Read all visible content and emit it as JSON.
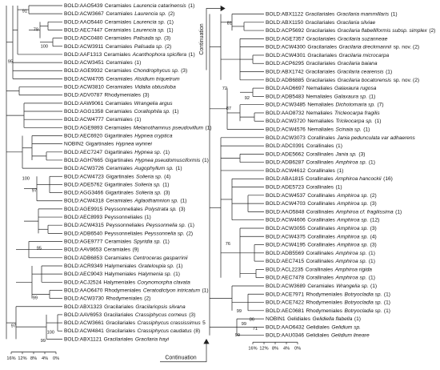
{
  "left_column": {
    "leaves": [
      {
        "id": "BOLD:AAO5439",
        "order": "Ceramiales",
        "taxon": "Laurencia catarinensis",
        "count": "(1)"
      },
      {
        "id": "BOLD:ACW3667",
        "order": "Ceramiales",
        "taxon": "Laurencia sp.",
        "count": "(2)"
      },
      {
        "id": "BOLD:AAO5440",
        "order": "Ceramiales",
        "taxon": "Laurencia sp.",
        "count": "(1)"
      },
      {
        "id": "BOLD:AEC7447",
        "order": "Ceramiales",
        "taxon": "Laurencia sp.",
        "count": "(1)"
      },
      {
        "id": "BOLD:ADC0480",
        "order": "Ceramiales",
        "taxon": "Palisada sp.",
        "count": "(3)"
      },
      {
        "id": "BOLD:ACW3911",
        "order": "Ceramiales",
        "taxon": "Palisada sp.",
        "count": "(2)"
      },
      {
        "id": "BOLD:AAF1313",
        "order": "Ceramiales",
        "taxon": "Acanthophora spicifera",
        "count": "(1)"
      },
      {
        "id": "BOLD:ACW3451",
        "order": "Ceramiales",
        "count": "(1)"
      },
      {
        "id": "BOLD:AGE9932",
        "order": "Ceramiales",
        "taxon": "Chondrophycus sp.",
        "count": "(3)"
      },
      {
        "id": "BOLD:ACW4705",
        "order": "Ceramiales",
        "taxon": "Alsidium triquetrum"
      },
      {
        "id": "BOLD:ACW3810",
        "order": "Ceramiales",
        "taxon": "Vidalia obtusiloba"
      },
      {
        "id": "BOLD:ADV0787",
        "order": "Rhodymeniales",
        "count": "(3)"
      },
      {
        "id": "BOLD:AAW9061",
        "order": "Ceramiales",
        "taxon": "Wrangelia argus"
      },
      {
        "id": "BOLD:AGG1358",
        "order": "Ceramiales",
        "taxon": "Corallophila sp.",
        "count": "(1)"
      },
      {
        "id": "BOLD:ACW4777",
        "order": "Ceramiales",
        "count": "(1)"
      },
      {
        "id": "BOLD:AGE9893",
        "order": "Ceramiales",
        "taxon": "Melanothamnus pseudovillum",
        "count": "(1)"
      },
      {
        "id": "BOLD:AEC6920",
        "order": "Gigartinales",
        "taxon": "Hypnea cryptica"
      },
      {
        "id": "NOBIN2",
        "order": "Gigartinales",
        "taxon": "Hypnea wynnei"
      },
      {
        "id": "BOLD:AEC7247",
        "order": "Gigartinales",
        "taxon": "Hypnea sp.",
        "count": "(1)"
      },
      {
        "id": "BOLD:AGH7665",
        "order": "Gigartinales",
        "taxon": "Hypnea pseudomusciformis",
        "count": "(1)"
      },
      {
        "id": "BOLD:ACW3726",
        "order": "Ceramiales",
        "taxon": "Augophyllum sp.",
        "count": "(1)"
      },
      {
        "id": "BOLD:ACW4723",
        "order": "Gigartinales",
        "taxon": "Solieria sp.",
        "count": "(4)"
      },
      {
        "id": "BOLD:ADE5762",
        "order": "Gigartinales",
        "taxon": "Solieria sp.",
        "count": "(1)"
      },
      {
        "id": "BOLD:AGG3466",
        "order": "Gigartinales",
        "taxon": "Solieria sp.",
        "count": "(3)"
      },
      {
        "id": "BOLD:ACW4318",
        "order": "Ceramiales",
        "taxon": "Aglaothamnion sp.",
        "count": "(1)"
      },
      {
        "id": "BOLD:AGE9915",
        "order": "Peyssonneliales",
        "taxon": "Polystrata sp.",
        "count": "(3)"
      },
      {
        "id": "BOLD:AEC8993",
        "order": "Peyssonneliales",
        "count": "(1)"
      },
      {
        "id": "BOLD:ACW4315",
        "order": "Peyssonneliales",
        "taxon": "Peyssonnelia sp.",
        "count": "(1)"
      },
      {
        "id": "BOLD:ADB6540",
        "order": "Peyssonneliales",
        "taxon": "Peyssonnelia sp.",
        "count": "(2)"
      },
      {
        "id": "BOLD:AGE9777",
        "order": "Ceramiales",
        "taxon": "Spyridia sp.",
        "count": "(1)"
      },
      {
        "id": "BOLD:AAV8653",
        "order": "Ceramiales",
        "count": "(9)"
      },
      {
        "id": "BOLD:ADB6853",
        "order": "Ceramiales",
        "taxon": "Centroceras gasparrinii"
      },
      {
        "id": "BOLD:ACR9349",
        "order": "Halymeniales",
        "taxon": "Grateloupia sp.",
        "count": "(1)"
      },
      {
        "id": "BOLD:AEC9043",
        "order": "Halymeniales",
        "taxon": "Halymenia sp.",
        "count": "(1)"
      },
      {
        "id": "BOLD:ACJ2524",
        "order": "Halymeniales",
        "taxon": "Corynomorpha clavata"
      },
      {
        "id": "BOLD:AAO6470",
        "order": "Rhodymeniales",
        "taxon": "Ceratodictyon intricatum",
        "count": "(1)"
      },
      {
        "id": "BOLD:ACW3730",
        "order": "Rhodymeniales",
        "count": "(2)"
      },
      {
        "id": "BOLD:ABX1323",
        "order": "Gracilariales",
        "taxon": "Gracilariopsis silvana"
      },
      {
        "id": "BOLD:AAV6953",
        "order": "Gracilariales",
        "taxon": "Crassiphycus corneus",
        "count": "(3)"
      },
      {
        "id": "BOLD:ACW3661",
        "order": "Gracilariales",
        "taxon": "Crassiphycus crassissimus",
        "count": "5"
      },
      {
        "id": "BOLD:ACW4841",
        "order": "Gracilariales",
        "taxon": "Crassiphycus caudatus",
        "count": "(8)"
      },
      {
        "id": "BOLD:ABX1121",
        "order": "Gracilariales",
        "taxon": "Gracilaria hayi"
      }
    ],
    "bootstrap": [
      91,
      79,
      100,
      95,
      100,
      97,
      95,
      99,
      97,
      100,
      99
    ]
  },
  "right_column": {
    "leaves": [
      {
        "id": "BOLD:ABX1122",
        "order": "Gracilariales",
        "taxon": "Gracilaria mammillaris",
        "count": "(1)"
      },
      {
        "id": "BOLD:ABX1150",
        "order": "Gracilariales",
        "taxon": "Gracilaria silviae"
      },
      {
        "id": "BOLD:ACP5692",
        "order": "Gracilariales",
        "taxon": "Gracilaria flabelliformis subsp. simplex",
        "count": "(2)"
      },
      {
        "id": "BOLD:AGE7357",
        "order": "Gracilariales",
        "taxon": "Gracilaria suzanneae"
      },
      {
        "id": "BOLD:ACW4300",
        "order": "Gracilariales",
        "taxon": "Gracilaria dreckmannii",
        "count": "sp. nov. (2)"
      },
      {
        "id": "BOLD:ACW4301",
        "order": "Gracilariales",
        "taxon": "Gracilaria microcarpa"
      },
      {
        "id": "BOLD:ACP6295",
        "order": "Gracilariales",
        "taxon": "Gracilaria baiana"
      },
      {
        "id": "BOLD:ABX1742",
        "order": "Gracilariales",
        "taxon": "Gracilaria cearensis",
        "count": "(1)"
      },
      {
        "id": "BOLD:ADB6885",
        "order": "Gracilariales",
        "taxon": "Gracilaria bocatorensis",
        "count": "sp. nov. (2)"
      },
      {
        "id": "BOLD:AAO6697",
        "order": "Nemaliales",
        "taxon": "Galaxaura rugosa"
      },
      {
        "id": "BOLD:ADB5483",
        "order": "Nemaliales",
        "taxon": "Galaxaura sp.",
        "count": "(1)"
      },
      {
        "id": "BOLD:ACW3485",
        "order": "Nemaliales",
        "taxon": "Dichotomaria sp.",
        "count": "(7)"
      },
      {
        "id": "BOLD:AAO8732",
        "order": "Nemaliales",
        "taxon": "Tricleocarpa fragilis"
      },
      {
        "id": "BOLD:ACW3720",
        "order": "Nemaliales",
        "taxon": "Tricleocarpa sp.",
        "count": "(1)"
      },
      {
        "id": "BOLD:ACW4576",
        "order": "Nemaliales",
        "taxon": "Scinaia sp.",
        "count": "(1)"
      },
      {
        "id": "BOLD:ACW3073",
        "order": "Corallinales",
        "taxon": "Jania pedunculata var adhaerens"
      },
      {
        "id": "BOLD:ADC0391",
        "order": "Corallinales",
        "count": "(1)"
      },
      {
        "id": "BOLD:ADE5662",
        "order": "Corallinales",
        "taxon": "Jania sp.",
        "count": "(3)"
      },
      {
        "id": "BOLD:ADB6287",
        "order": "Corallinales",
        "taxon": "Amphiroa sp.",
        "count": "(1)"
      },
      {
        "id": "BOLD:ACW4612",
        "order": "Corallinales",
        "count": "(1)"
      },
      {
        "id": "BOLD:ABA1815",
        "order": "Corallinales",
        "taxon": "Amphiroa hancockii",
        "count": "(16)"
      },
      {
        "id": "BOLD:ADE5723",
        "order": "Corallinales",
        "count": "(1)"
      },
      {
        "id": "BOLD:ACW4537",
        "order": "Corallinales",
        "taxon": "Amphiroa sp.",
        "count": "(2)"
      },
      {
        "id": "BOLD:ACW4703",
        "order": "Corallinales",
        "taxon": "Amphiroa sp.",
        "count": "(3)"
      },
      {
        "id": "BOLD:AAO5848",
        "order": "Corallinales",
        "taxon": "Amphiroa cf. fragilissima",
        "count": "(1)"
      },
      {
        "id": "BOLD:ACW4606",
        "order": "Corallinales",
        "taxon": "Amphiroa sp.",
        "count": "(12)"
      },
      {
        "id": "BOLD:ACW3055",
        "order": "Corallinales",
        "taxon": "Amphiroa sp.",
        "count": "(3)"
      },
      {
        "id": "BOLD:ACW4375",
        "order": "Corallinales",
        "taxon": "Amphiroa sp.",
        "count": "(4)"
      },
      {
        "id": "BOLD:ACW4195",
        "order": "Corallinales",
        "taxon": "Amphiroa sp.",
        "count": "(3)"
      },
      {
        "id": "BOLD:ADB5569",
        "order": "Corallinales",
        "taxon": "Amphiroa sp.",
        "count": "(1)"
      },
      {
        "id": "BOLD:AEC7415",
        "order": "Corallinales",
        "taxon": "Amphiroa sp.",
        "count": "(1)"
      },
      {
        "id": "BOLD:ACL2235",
        "order": "Corallinales",
        "taxon": "Amphiroa rigida"
      },
      {
        "id": "BOLD:AEC7478",
        "order": "Corallinales",
        "taxon": "Amphiroa sp.",
        "count": "(1)"
      },
      {
        "id": "BOLD:ACW3689",
        "order": "Ceramiales",
        "taxon": "Wrangelia sp.",
        "count": "(1)"
      },
      {
        "id": "BOLD:ACE7971",
        "order": "Rhodymeniales",
        "taxon": "Botryocladia sp.",
        "count": "(1)"
      },
      {
        "id": "BOLD:ACE7422",
        "order": "Rhodymeniales",
        "taxon": "Botryocladia sp.",
        "count": "(1)"
      },
      {
        "id": "BOLD:AEC0681",
        "order": "Rhodymeniales",
        "taxon": "Botryocladia sp.",
        "count": "(1)"
      },
      {
        "id": "NOBIN1",
        "order": "Gelidiales",
        "taxon": "Gelidiella flabella",
        "count": "(1)"
      },
      {
        "id": "BOLD:AAO6432",
        "order": "Gelidiales",
        "taxon": "Gelidium sp."
      },
      {
        "id": "BOLD:AAU0346",
        "order": "Gelidiales",
        "taxon": "Gelidium lineare"
      }
    ],
    "bootstrap": [
      81,
      72,
      92,
      87,
      76,
      86,
      99,
      99,
      71,
      99
    ]
  },
  "scale_labels": [
    "16%",
    "12%",
    "8%",
    "4%",
    "0%"
  ],
  "continuation": "Continuation"
}
